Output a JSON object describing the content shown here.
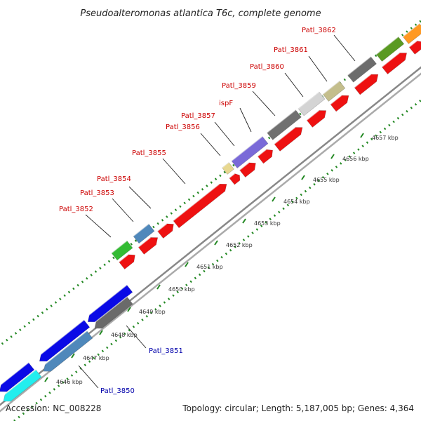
{
  "title": "Pseudoalteromonas atlantica T6c, complete genome",
  "footer": {
    "accession": "Accession: NC_008228",
    "summary": "Topology: circular; Length: 5,187,005 bp; Genes: 4,364"
  },
  "colors": {
    "forward_label": "#cc0000",
    "reverse_label": "#0000aa",
    "ring": "#999999",
    "tick": "#228822",
    "red_gene": "#ee1111",
    "blue_gene": "#0a0ae6"
  },
  "scale": {
    "labels": [
      "4646 kbp",
      "4647 kbp",
      "4648 kbp",
      "4649 kbp",
      "4650 kbp",
      "4651 kbp",
      "4652 kbp",
      "4653 kbp",
      "4654 kbp",
      "4655 kbp",
      "4656 kbp",
      "4657 kbp"
    ]
  },
  "forward_labels": [
    "Patl_3852",
    "Patl_3853",
    "Patl_3854",
    "Patl_3855",
    "Patl_3856",
    "Patl_3857",
    "ispF",
    "Patl_3859",
    "Patl_3860",
    "Patl_3861",
    "Patl_3862"
  ],
  "reverse_labels": [
    "Patl_3851",
    "Patl_3850"
  ]
}
